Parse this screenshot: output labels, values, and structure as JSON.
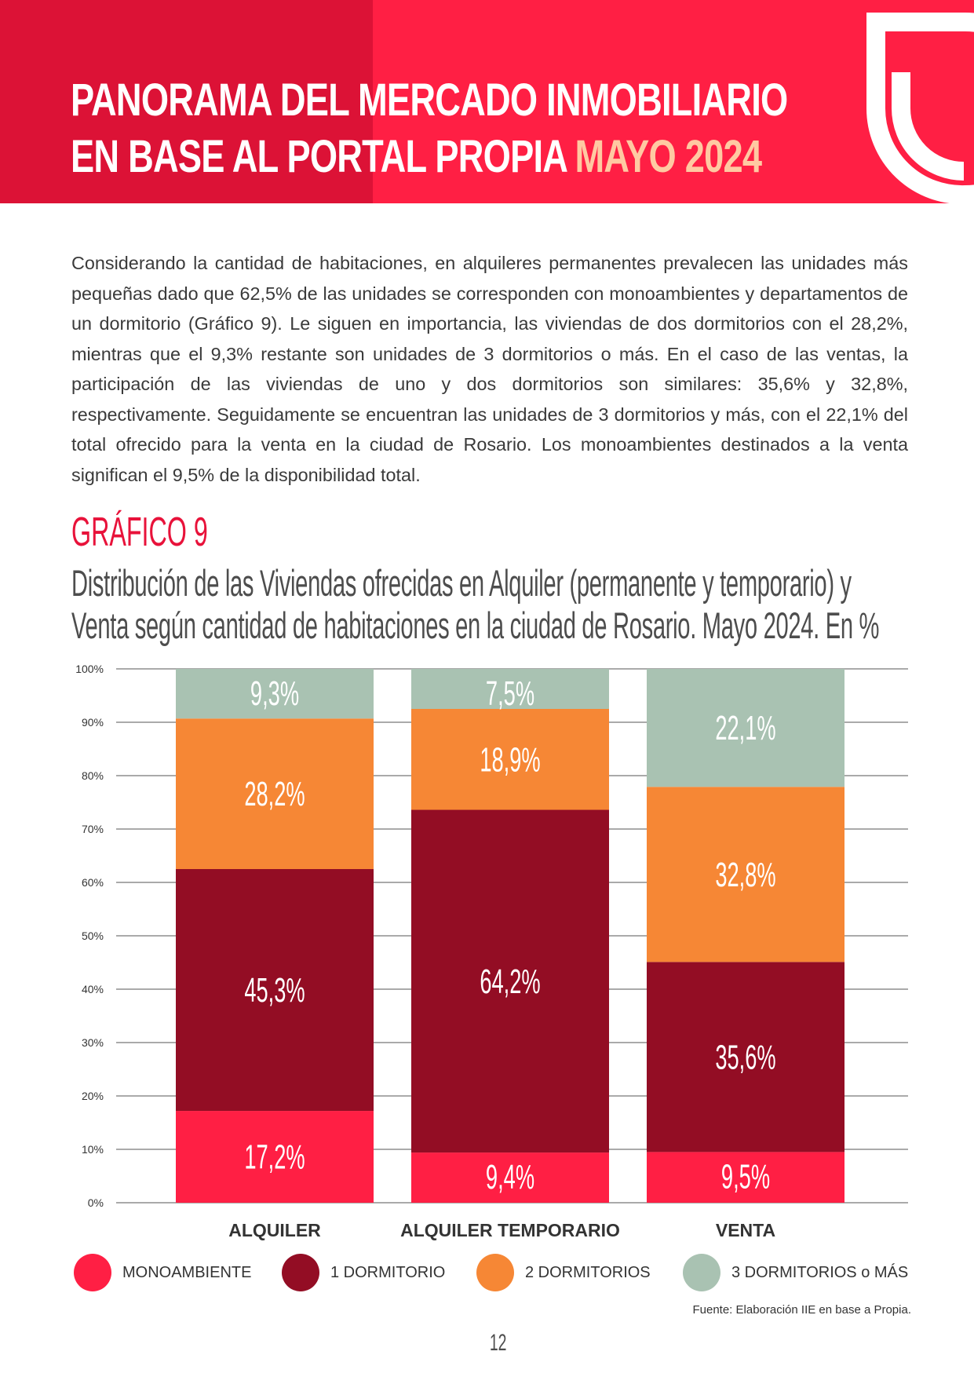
{
  "header": {
    "title_line1": "PANORAMA DEL MERCADO INMOBILIARIO",
    "title_line2": "EN BASE AL PORTAL PROPIA",
    "title_accent": "MAYO 2024",
    "logo_icon": "propia-logo-icon"
  },
  "intro": {
    "paragraph": "Considerando la cantidad de habitaciones, en alquileres permanentes prevalecen las unidades más pequeñas dado que 62,5% de las unidades se corresponden con monoambientes y departamentos de un dormitorio (Gráfico 9). Le siguen en importancia, las viviendas de dos dormitorios con el 28,2%, mientras que el 9,3% restante son unidades de 3 dormitorios o más. En el caso de las ventas, la participación de las viviendas de uno y dos dormitorios son similares: 35,6% y 32,8%, respectivamente. Seguidamente se encuentran las unidades de 3 dormitorios y más, con el 22,1% del total ofrecido para la venta en la ciudad de Rosario. Los monoambientes destinados a la venta significan el 9,5% de la disponibilidad total."
  },
  "chart_heading": "GRÁFICO 9",
  "chart_subtitle_line1": "Distribución de las Viviendas ofrecidas en Alquiler (permanente y temporario) y",
  "chart_subtitle_line2": "Venta según cantidad de habitaciones en la ciudad de Rosario. Mayo 2024. En %",
  "chart_data": {
    "type": "bar",
    "stacked": true,
    "percent_stacked": true,
    "categories": [
      "ALQUILER",
      "ALQUILER TEMPORARIO",
      "VENTA"
    ],
    "series": [
      {
        "name": "MONOAMBIENTE",
        "values": [
          17.2,
          9.4,
          9.5
        ],
        "labels": [
          "17,2%",
          "9,4%",
          "9,5%"
        ],
        "color": "#ff1f44"
      },
      {
        "name": "1 DORMITORIO",
        "values": [
          45.3,
          64.2,
          35.6
        ],
        "labels": [
          "45,3%",
          "64,2%",
          "35,6%"
        ],
        "color": "#930d24"
      },
      {
        "name": "2 DORMITORIOS",
        "values": [
          28.2,
          18.9,
          32.8
        ],
        "labels": [
          "28,2%",
          "18,9%",
          "32,8%"
        ],
        "color": "#f68735"
      },
      {
        "name": "3 DORMITORIOS o MÁS",
        "values": [
          9.3,
          7.5,
          22.1
        ],
        "labels": [
          "9,3%",
          "7,5%",
          "22,1%"
        ],
        "color": "#a9c2b2"
      }
    ],
    "yticks": [
      "0%",
      "10%",
      "20%",
      "30%",
      "40%",
      "50%",
      "60%",
      "70%",
      "80%",
      "90%",
      "100%"
    ],
    "ylim": [
      0,
      100
    ],
    "grid": true,
    "legend_position": "bottom",
    "xlabel": "",
    "ylabel": ""
  },
  "source": "Fuente: Elaboración IIE en base a Propia.",
  "page_number": "12"
}
